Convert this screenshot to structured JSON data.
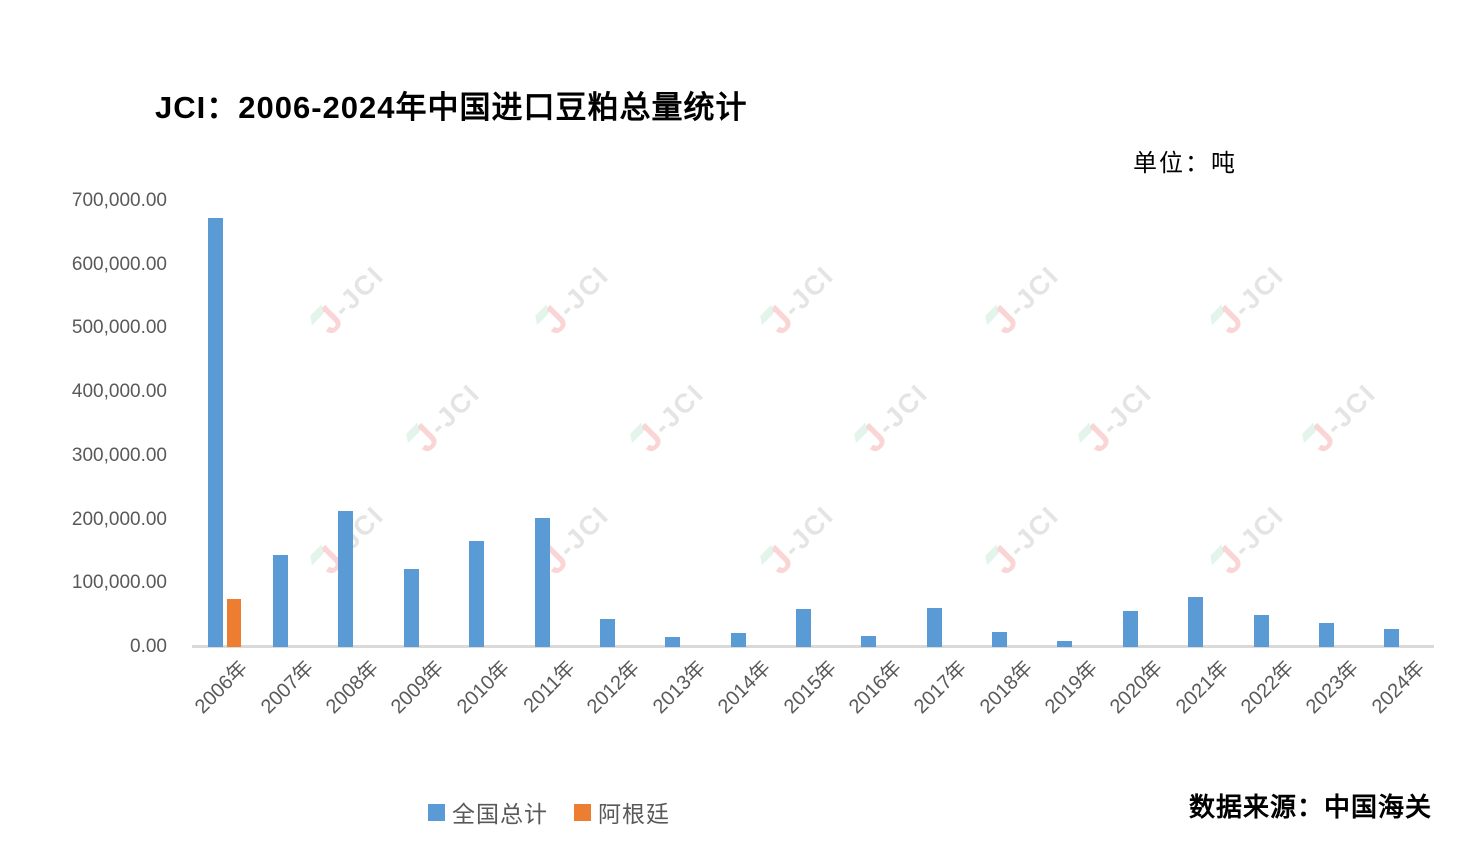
{
  "header": {
    "title": "JCI：2006-2024年中国进口豆粕总量统计",
    "unit_label": "单位：吨"
  },
  "footer": {
    "source": "数据来源：中国海关"
  },
  "legend": [
    {
      "label": "全国总计",
      "color": "#5B9BD5"
    },
    {
      "label": "阿根廷",
      "color": "#ED7D31"
    }
  ],
  "watermark": {
    "mark": "J",
    "text": "JCI"
  },
  "chart_data": {
    "type": "bar",
    "title": "JCI：2006-2024年中国进口豆粕总量统计",
    "unit": "吨",
    "categories": [
      "2006年",
      "2007年",
      "2008年",
      "2009年",
      "2010年",
      "2011年",
      "2012年",
      "2013年",
      "2014年",
      "2015年",
      "2016年",
      "2017年",
      "2018年",
      "2019年",
      "2020年",
      "2021年",
      "2022年",
      "2023年",
      "2024年"
    ],
    "series": [
      {
        "name": "全国总计",
        "color": "#5B9BD5",
        "values": [
          674000,
          144000,
          214000,
          123000,
          167000,
          203000,
          44000,
          16000,
          22000,
          59000,
          18000,
          61000,
          23000,
          10000,
          56000,
          78000,
          50000,
          37000,
          28000
        ]
      },
      {
        "name": "阿根廷",
        "color": "#ED7D31",
        "values": [
          75000,
          0,
          0,
          0,
          0,
          0,
          0,
          0,
          0,
          0,
          0,
          0,
          0,
          0,
          0,
          0,
          0,
          0,
          0
        ]
      }
    ],
    "y_ticks": [
      "700,000.00",
      "600,000.00",
      "500,000.00",
      "400,000.00",
      "300,000.00",
      "200,000.00",
      "100,000.00",
      "0.00"
    ],
    "ylim": [
      0,
      700000
    ],
    "grid": false,
    "legend_position": "bottom",
    "source": "数据来源：中国海关"
  }
}
